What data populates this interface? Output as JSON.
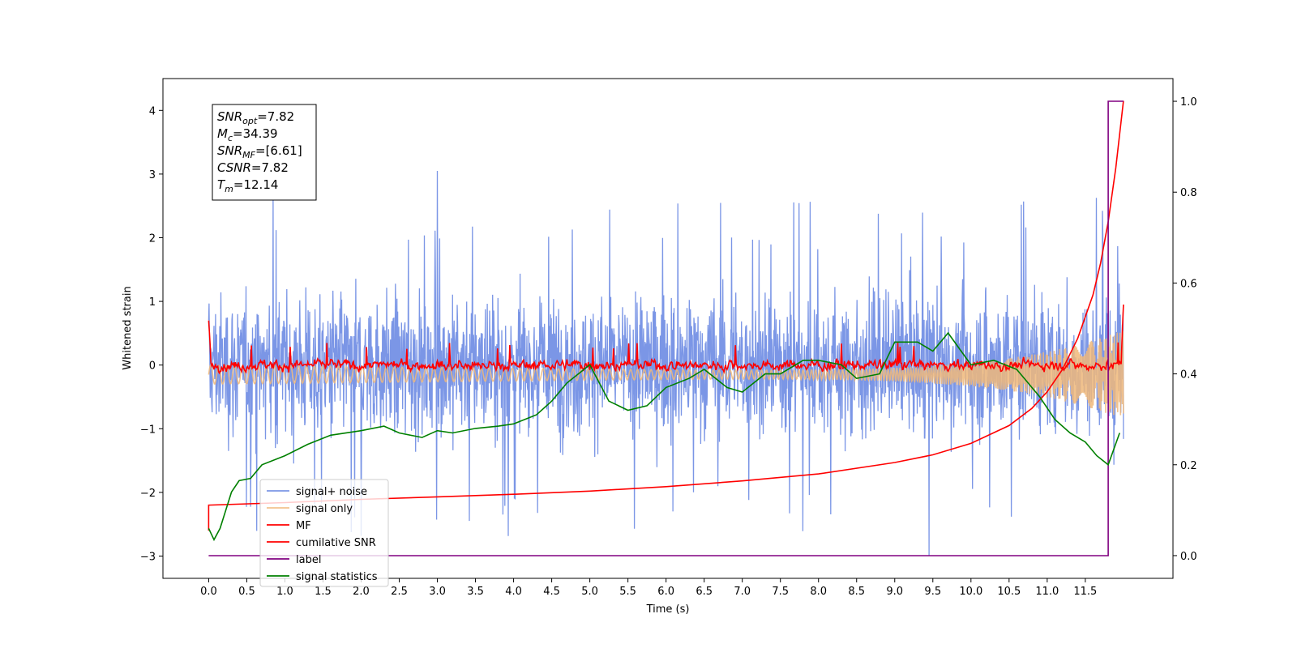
{
  "chart_data": {
    "type": "line",
    "xlabel": "Time (s)",
    "ylabel": "Whitened strain",
    "xlim": [
      -0.6,
      12.65
    ],
    "ylim": [
      -3.35,
      4.5
    ],
    "ylim_right": [
      -0.05,
      1.05
    ],
    "x_ticks": [
      0.0,
      0.5,
      1.0,
      1.5,
      2.0,
      2.5,
      3.0,
      3.5,
      4.0,
      4.5,
      5.0,
      5.5,
      6.0,
      6.5,
      7.0,
      7.5,
      8.0,
      8.5,
      9.0,
      9.5,
      10.0,
      10.5,
      11.0,
      11.5
    ],
    "x_tick_labels": [
      "0.0",
      "0.5",
      "1.0",
      "1.5",
      "2.0",
      "2.5",
      "3.0",
      "3.5",
      "4.0",
      "4.5",
      "5.0",
      "5.5",
      "6.0",
      "6.5",
      "7.0",
      "7.5",
      "8.0",
      "8.5",
      "9.0",
      "9.5",
      "10.0",
      "10.5",
      "11.0",
      "11.5"
    ],
    "y_ticks": [
      -3,
      -2,
      -1,
      0,
      1,
      2,
      3,
      4
    ],
    "y_tick_labels": [
      "−3",
      "−2",
      "−1",
      "0",
      "1",
      "2",
      "3",
      "4"
    ],
    "y_right_ticks": [
      0.0,
      0.2,
      0.4,
      0.6,
      0.8,
      1.0
    ],
    "y_right_tick_labels": [
      "0.0",
      "0.2",
      "0.4",
      "0.6",
      "0.8",
      "1.0"
    ],
    "grid": false,
    "legend_position": "lower-left",
    "annotation": {
      "lines": [
        {
          "sym": "SNR",
          "sub": "opt",
          "val": "=7.82"
        },
        {
          "sym": "M",
          "sub": "c",
          "val": "=34.39"
        },
        {
          "sym": "SNR",
          "sub": "MF",
          "val": "=[6.61]"
        },
        {
          "sym": "CSNR",
          "sub": "",
          "val": "=7.82"
        },
        {
          "sym": "T",
          "sub": "m",
          "val": "=12.14"
        }
      ]
    },
    "series": [
      {
        "name": "signal+ noise",
        "color": "#7b96e6",
        "axis": "left",
        "kind": "noise",
        "x_range": [
          0.0,
          12.0
        ],
        "band": [
          -1.5,
          1.5
        ],
        "extremes": [
          -3.0,
          3.05
        ]
      },
      {
        "name": "signal only",
        "color": "#f0b87a",
        "axis": "left",
        "kind": "chirp",
        "x_range": [
          0.0,
          12.0
        ],
        "amplitude_start": 0.25,
        "amplitude_end": 0.7
      },
      {
        "name": "MF",
        "color": "#ff0000",
        "axis": "left",
        "kind": "jitter",
        "x_range": [
          0.0,
          12.0
        ],
        "baseline": 0.0,
        "spread": [
          -0.25,
          0.45
        ],
        "start_value": 0.7,
        "end_value": 0.95
      },
      {
        "name": "cumilative SNR",
        "color": "#ff0000",
        "axis": "left",
        "kind": "line",
        "x": [
          0.0,
          0.0,
          1.0,
          2.0,
          3.0,
          4.0,
          5.0,
          6.0,
          7.0,
          8.0,
          9.0,
          9.5,
          10.0,
          10.5,
          10.8,
          11.0,
          11.2,
          11.4,
          11.6,
          11.7,
          11.8,
          11.9,
          12.0
        ],
        "y": [
          -2.6,
          -2.2,
          -2.16,
          -2.11,
          -2.07,
          -2.03,
          -1.98,
          -1.91,
          -1.82,
          -1.71,
          -1.53,
          -1.41,
          -1.23,
          -0.95,
          -0.68,
          -0.42,
          -0.07,
          0.42,
          1.1,
          1.6,
          2.25,
          3.1,
          4.15
        ]
      },
      {
        "name": "label",
        "color": "#800080",
        "axis": "right",
        "kind": "step",
        "x": [
          0.0,
          11.75,
          11.8,
          12.0
        ],
        "y": [
          0.0,
          0.0,
          1.0,
          1.0
        ]
      },
      {
        "name": "signal statistics",
        "color": "#008000",
        "axis": "right",
        "kind": "line",
        "x": [
          0.0,
          0.07,
          0.15,
          0.3,
          0.4,
          0.55,
          0.7,
          1.0,
          1.3,
          1.6,
          2.0,
          2.3,
          2.5,
          2.8,
          3.0,
          3.2,
          3.5,
          3.8,
          4.0,
          4.3,
          4.5,
          4.7,
          5.0,
          5.25,
          5.5,
          5.75,
          6.0,
          6.3,
          6.5,
          6.8,
          7.0,
          7.3,
          7.5,
          7.8,
          8.0,
          8.3,
          8.5,
          8.8,
          9.0,
          9.3,
          9.5,
          9.7,
          10.0,
          10.3,
          10.6,
          10.9,
          11.1,
          11.3,
          11.5,
          11.65,
          11.8,
          11.95
        ],
        "y": [
          0.06,
          0.035,
          0.06,
          0.14,
          0.165,
          0.17,
          0.2,
          0.22,
          0.245,
          0.265,
          0.275,
          0.285,
          0.27,
          0.26,
          0.275,
          0.27,
          0.28,
          0.285,
          0.29,
          0.31,
          0.34,
          0.38,
          0.42,
          0.34,
          0.32,
          0.33,
          0.37,
          0.39,
          0.41,
          0.37,
          0.36,
          0.4,
          0.4,
          0.43,
          0.43,
          0.42,
          0.39,
          0.4,
          0.47,
          0.47,
          0.45,
          0.49,
          0.42,
          0.43,
          0.41,
          0.35,
          0.3,
          0.27,
          0.25,
          0.22,
          0.2,
          0.27
        ]
      }
    ]
  }
}
